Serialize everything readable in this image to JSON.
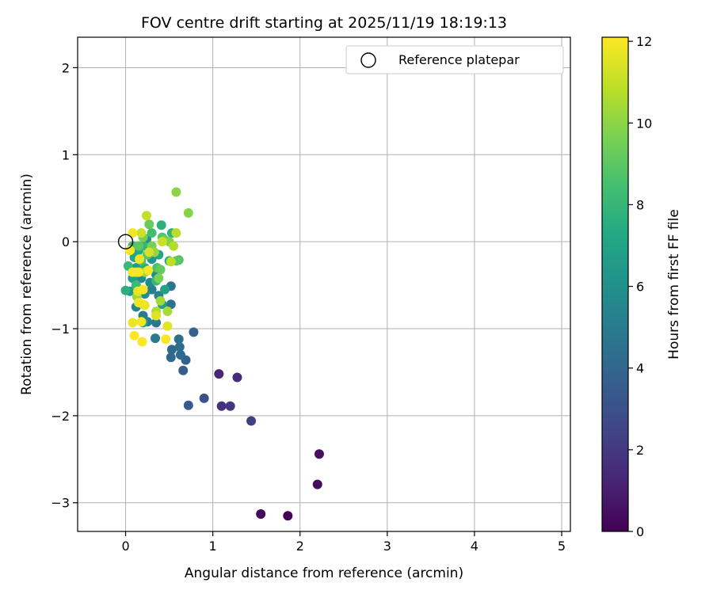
{
  "chart_data": {
    "type": "scatter",
    "title": "FOV centre drift starting at 2025/11/19 18:19:13",
    "xlabel": "Angular distance from reference (arcmin)",
    "ylabel": "Rotation from reference (arcmin)",
    "xlim": [
      -0.55,
      5.1
    ],
    "ylim": [
      -3.33,
      2.35
    ],
    "xticks": [
      0,
      1,
      2,
      3,
      4,
      5
    ],
    "yticks": [
      -3,
      -2,
      -1,
      0,
      1,
      2
    ],
    "grid": true,
    "legend": {
      "position": "top-right",
      "entries": [
        "Reference platepar"
      ]
    },
    "reference_point": {
      "x": 0,
      "y": 0
    },
    "colorbar": {
      "label": "Hours from first FF file",
      "min": 0,
      "max": 12.1,
      "ticks": [
        0,
        2,
        4,
        6,
        8,
        10,
        12
      ],
      "colormap": "viridis"
    },
    "points": [
      {
        "x": 1.86,
        "y": -3.15,
        "hours": 0.0
      },
      {
        "x": 1.55,
        "y": -3.13,
        "hours": 0.2
      },
      {
        "x": 2.2,
        "y": -2.79,
        "hours": 0.35
      },
      {
        "x": 2.22,
        "y": -2.44,
        "hours": 0.5
      },
      {
        "x": 1.07,
        "y": -1.52,
        "hours": 1.3
      },
      {
        "x": 1.28,
        "y": -1.56,
        "hours": 1.5
      },
      {
        "x": 1.1,
        "y": -1.89,
        "hours": 1.7
      },
      {
        "x": 1.2,
        "y": -1.89,
        "hours": 1.9
      },
      {
        "x": 1.44,
        "y": -2.06,
        "hours": 2.2
      },
      {
        "x": 0.9,
        "y": -1.8,
        "hours": 3.0
      },
      {
        "x": 0.72,
        "y": -1.88,
        "hours": 3.4
      },
      {
        "x": 0.66,
        "y": -1.48,
        "hours": 3.6
      },
      {
        "x": 0.69,
        "y": -1.36,
        "hours": 3.8
      },
      {
        "x": 0.78,
        "y": -1.04,
        "hours": 3.9
      },
      {
        "x": 0.52,
        "y": -1.33,
        "hours": 4.0
      },
      {
        "x": 0.53,
        "y": -1.24,
        "hours": 4.1
      },
      {
        "x": 0.62,
        "y": -1.21,
        "hours": 4.3
      },
      {
        "x": 0.61,
        "y": -1.12,
        "hours": 4.4
      },
      {
        "x": 0.63,
        "y": -1.3,
        "hours": 4.2
      },
      {
        "x": 0.52,
        "y": -0.72,
        "hours": 4.6
      },
      {
        "x": 0.52,
        "y": -0.51,
        "hours": 4.7
      },
      {
        "x": 0.35,
        "y": -0.93,
        "hours": 4.8
      },
      {
        "x": 0.34,
        "y": -1.11,
        "hours": 4.9
      },
      {
        "x": 0.2,
        "y": -0.85,
        "hours": 5.0
      },
      {
        "x": 0.25,
        "y": -0.92,
        "hours": 5.1
      },
      {
        "x": 0.3,
        "y": -0.55,
        "hours": 5.2
      },
      {
        "x": 0.38,
        "y": -0.62,
        "hours": 5.3
      },
      {
        "x": 0.16,
        "y": -0.71,
        "hours": 5.4
      },
      {
        "x": 0.12,
        "y": -0.75,
        "hours": 5.5
      },
      {
        "x": 0.28,
        "y": -0.47,
        "hours": 5.6
      },
      {
        "x": 0.18,
        "y": -0.42,
        "hours": 5.7
      },
      {
        "x": 0.22,
        "y": -0.6,
        "hours": 5.8
      },
      {
        "x": 0.35,
        "y": -0.38,
        "hours": 6.0
      },
      {
        "x": 0.24,
        "y": 0.03,
        "hours": 6.1
      },
      {
        "x": 0.3,
        "y": -0.2,
        "hours": 6.3
      },
      {
        "x": 0.12,
        "y": -0.3,
        "hours": 6.5
      },
      {
        "x": 0.05,
        "y": -0.57,
        "hours": 6.6
      },
      {
        "x": 0.08,
        "y": -0.42,
        "hours": 6.8
      },
      {
        "x": 0.42,
        "y": -0.72,
        "hours": 6.7
      },
      {
        "x": 0.45,
        "y": -0.55,
        "hours": 6.9
      },
      {
        "x": 0.2,
        "y": -0.93,
        "hours": 7.0
      },
      {
        "x": 0.38,
        "y": -0.15,
        "hours": 7.1
      },
      {
        "x": 0.1,
        "y": -0.18,
        "hours": 7.2
      },
      {
        "x": 0.15,
        "y": -0.1,
        "hours": 7.3
      },
      {
        "x": 0.5,
        "y": -0.22,
        "hours": 7.4
      },
      {
        "x": 0.22,
        "y": -0.3,
        "hours": 7.5
      },
      {
        "x": 0.0,
        "y": -0.56,
        "hours": 7.6
      },
      {
        "x": 0.41,
        "y": 0.19,
        "hours": 7.7
      },
      {
        "x": 0.53,
        "y": 0.1,
        "hours": 7.8
      },
      {
        "x": 0.2,
        "y": -0.05,
        "hours": 7.9
      },
      {
        "x": 0.35,
        "y": -0.45,
        "hours": 8.0
      },
      {
        "x": 0.03,
        "y": -0.28,
        "hours": 8.1
      },
      {
        "x": 0.12,
        "y": -0.5,
        "hours": 8.2
      },
      {
        "x": 0.08,
        "y": -0.05,
        "hours": 8.3
      },
      {
        "x": 0.3,
        "y": 0.1,
        "hours": 8.4
      },
      {
        "x": 0.18,
        "y": -0.22,
        "hours": 8.5
      },
      {
        "x": 0.36,
        "y": -0.3,
        "hours": 8.6
      },
      {
        "x": 0.61,
        "y": -0.21,
        "hours": 8.7
      },
      {
        "x": 0.42,
        "y": 0.05,
        "hours": 8.8
      },
      {
        "x": 0.25,
        "y": -0.15,
        "hours": 8.9
      },
      {
        "x": 0.15,
        "y": -0.05,
        "hours": 9.0
      },
      {
        "x": 0.58,
        "y": -0.22,
        "hours": 9.1
      },
      {
        "x": 0.4,
        "y": -0.32,
        "hours": 9.2
      },
      {
        "x": 0.27,
        "y": 0.2,
        "hours": 9.3
      },
      {
        "x": 0.45,
        "y": 0.02,
        "hours": 9.4
      },
      {
        "x": 0.2,
        "y": 0.05,
        "hours": 9.5
      },
      {
        "x": 0.3,
        "y": -0.05,
        "hours": 9.6
      },
      {
        "x": 0.38,
        "y": -0.42,
        "hours": 9.7
      },
      {
        "x": 0.5,
        "y": -0.0,
        "hours": 9.8
      },
      {
        "x": 0.72,
        "y": 0.33,
        "hours": 9.9
      },
      {
        "x": 0.58,
        "y": 0.57,
        "hours": 10.0
      },
      {
        "x": 0.33,
        "y": -0.12,
        "hours": 10.1
      },
      {
        "x": 0.22,
        "y": -0.35,
        "hours": 10.2
      },
      {
        "x": 0.13,
        "y": -0.63,
        "hours": 10.3
      },
      {
        "x": 0.4,
        "y": -0.68,
        "hours": 10.4
      },
      {
        "x": 0.48,
        "y": -0.8,
        "hours": 10.5
      },
      {
        "x": 0.35,
        "y": -0.8,
        "hours": 10.6
      },
      {
        "x": 0.55,
        "y": -0.05,
        "hours": 10.7
      },
      {
        "x": 0.58,
        "y": 0.1,
        "hours": 10.8
      },
      {
        "x": 0.52,
        "y": -0.23,
        "hours": 10.9
      },
      {
        "x": 0.24,
        "y": 0.3,
        "hours": 11.0
      },
      {
        "x": 0.42,
        "y": 0.0,
        "hours": 11.1
      },
      {
        "x": 0.18,
        "y": 0.1,
        "hours": 11.2
      },
      {
        "x": 0.27,
        "y": -0.12,
        "hours": 11.3
      },
      {
        "x": 0.12,
        "y": -0.35,
        "hours": 11.4
      },
      {
        "x": 0.35,
        "y": -0.85,
        "hours": 11.5
      },
      {
        "x": 0.48,
        "y": -0.97,
        "hours": 11.6
      },
      {
        "x": 0.14,
        "y": -0.57,
        "hours": 11.7
      },
      {
        "x": 0.08,
        "y": -0.93,
        "hours": 11.75
      },
      {
        "x": 0.2,
        "y": -0.72,
        "hours": 11.8
      },
      {
        "x": 0.15,
        "y": -0.7,
        "hours": 11.85
      },
      {
        "x": 0.18,
        "y": -0.92,
        "hours": 11.9
      },
      {
        "x": 0.2,
        "y": -0.55,
        "hours": 11.95
      },
      {
        "x": 0.46,
        "y": -1.12,
        "hours": 12.0
      },
      {
        "x": 0.19,
        "y": -1.15,
        "hours": 12.05
      },
      {
        "x": 0.1,
        "y": -1.08,
        "hours": 12.1
      },
      {
        "x": 0.08,
        "y": 0.1,
        "hours": 11.9
      },
      {
        "x": 0.05,
        "y": -0.1,
        "hours": 12.0
      },
      {
        "x": 0.16,
        "y": -0.2,
        "hours": 11.8
      },
      {
        "x": 0.08,
        "y": -0.35,
        "hours": 11.9
      },
      {
        "x": 0.15,
        "y": -0.35,
        "hours": 12.0
      },
      {
        "x": 0.26,
        "y": -0.33,
        "hours": 11.9
      },
      {
        "x": 0.22,
        "y": -0.73,
        "hours": 11.7
      }
    ]
  }
}
